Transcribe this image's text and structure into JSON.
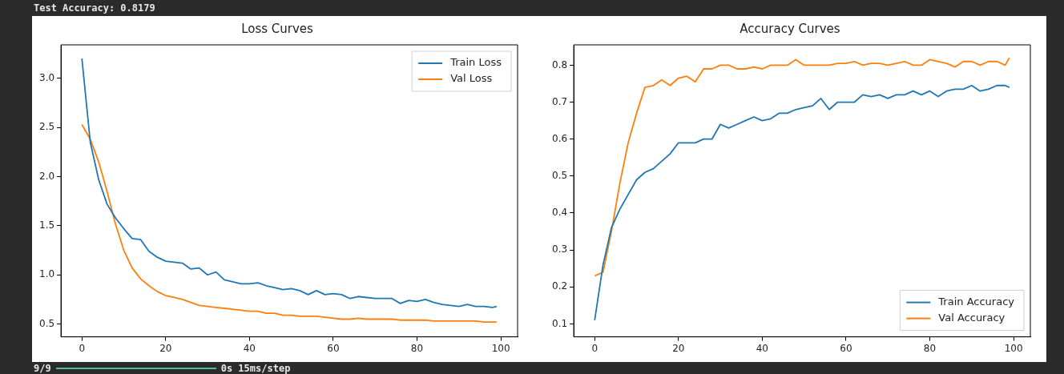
{
  "chart_data": [
    {
      "type": "line",
      "title": "Loss Curves",
      "annotations": [
        "Test Accuracy: 0.8179",
        "9/9",
        "0s 15ms/step"
      ],
      "x": [
        0,
        2,
        4,
        6,
        8,
        10,
        12,
        14,
        16,
        18,
        20,
        22,
        24,
        26,
        28,
        30,
        32,
        34,
        36,
        38,
        40,
        42,
        44,
        46,
        48,
        50,
        52,
        54,
        56,
        58,
        60,
        62,
        64,
        66,
        68,
        70,
        72,
        74,
        76,
        78,
        80,
        82,
        84,
        86,
        88,
        90,
        92,
        94,
        96,
        98,
        99
      ],
      "series": [
        {
          "name": "Train Loss",
          "color": "#1f77b4",
          "values": [
            3.2,
            2.35,
            1.97,
            1.72,
            1.58,
            1.47,
            1.37,
            1.36,
            1.24,
            1.18,
            1.14,
            1.13,
            1.12,
            1.06,
            1.07,
            1.0,
            1.03,
            0.95,
            0.93,
            0.91,
            0.91,
            0.92,
            0.89,
            0.87,
            0.85,
            0.86,
            0.84,
            0.8,
            0.84,
            0.8,
            0.81,
            0.8,
            0.76,
            0.78,
            0.77,
            0.76,
            0.76,
            0.76,
            0.71,
            0.74,
            0.73,
            0.75,
            0.72,
            0.7,
            0.69,
            0.68,
            0.7,
            0.68,
            0.68,
            0.67,
            0.68
          ]
        },
        {
          "name": "Val Loss",
          "color": "#ff7f0e",
          "values": [
            2.53,
            2.38,
            2.15,
            1.85,
            1.52,
            1.25,
            1.07,
            0.96,
            0.89,
            0.83,
            0.79,
            0.77,
            0.75,
            0.72,
            0.69,
            0.68,
            0.67,
            0.66,
            0.65,
            0.64,
            0.63,
            0.63,
            0.61,
            0.61,
            0.59,
            0.59,
            0.58,
            0.58,
            0.58,
            0.57,
            0.56,
            0.55,
            0.55,
            0.56,
            0.55,
            0.55,
            0.55,
            0.55,
            0.54,
            0.54,
            0.54,
            0.54,
            0.53,
            0.53,
            0.53,
            0.53,
            0.53,
            0.53,
            0.52,
            0.52,
            0.52
          ]
        }
      ],
      "xlim": [
        -5,
        104
      ],
      "xticks": [
        0,
        20,
        40,
        60,
        80,
        100
      ],
      "ylim": [
        0.37,
        3.34
      ],
      "yticks": [
        0.5,
        {
          "value": 1,
          "label": "1.0"
        },
        1.5,
        {
          "value": 2,
          "label": "2.0"
        },
        2.5,
        {
          "value": 3,
          "label": "3.0"
        }
      ],
      "legend": "top right"
    },
    {
      "type": "line",
      "title": "Accuracy Curves",
      "x": [
        0,
        2,
        4,
        6,
        8,
        10,
        12,
        14,
        16,
        18,
        20,
        22,
        24,
        26,
        28,
        30,
        32,
        34,
        36,
        38,
        40,
        42,
        44,
        46,
        48,
        50,
        52,
        54,
        56,
        58,
        60,
        62,
        64,
        66,
        68,
        70,
        72,
        74,
        76,
        78,
        80,
        82,
        84,
        86,
        88,
        90,
        92,
        94,
        96,
        98,
        99
      ],
      "series": [
        {
          "name": "Train Accuracy",
          "color": "#1f77b4",
          "values": [
            0.11,
            0.26,
            0.36,
            0.41,
            0.45,
            0.49,
            0.51,
            0.52,
            0.54,
            0.56,
            0.59,
            0.59,
            0.59,
            0.6,
            0.6,
            0.64,
            0.63,
            0.64,
            0.65,
            0.66,
            0.65,
            0.655,
            0.67,
            0.67,
            0.68,
            0.685,
            0.69,
            0.71,
            0.68,
            0.7,
            0.7,
            0.7,
            0.72,
            0.715,
            0.72,
            0.71,
            0.72,
            0.72,
            0.73,
            0.72,
            0.73,
            0.715,
            0.73,
            0.735,
            0.735,
            0.745,
            0.73,
            0.735,
            0.745,
            0.745,
            0.74
          ]
        },
        {
          "name": "Val Accuracy",
          "color": "#ff7f0e",
          "values": [
            0.23,
            0.24,
            0.35,
            0.48,
            0.59,
            0.67,
            0.74,
            0.745,
            0.76,
            0.745,
            0.765,
            0.77,
            0.755,
            0.79,
            0.79,
            0.8,
            0.8,
            0.79,
            0.79,
            0.795,
            0.79,
            0.8,
            0.8,
            0.8,
            0.815,
            0.8,
            0.8,
            0.8,
            0.8,
            0.805,
            0.805,
            0.81,
            0.8,
            0.805,
            0.805,
            0.8,
            0.805,
            0.81,
            0.8,
            0.8,
            0.815,
            0.81,
            0.805,
            0.795,
            0.81,
            0.81,
            0.8,
            0.81,
            0.81,
            0.8,
            0.82
          ]
        }
      ],
      "xlim": [
        -5,
        104
      ],
      "xticks": [
        0,
        20,
        40,
        60,
        80,
        100
      ],
      "ylim": [
        0.065,
        0.855
      ],
      "yticks": [
        0.1,
        0.2,
        0.3,
        0.4,
        0.5,
        0.6,
        0.7,
        0.8
      ],
      "legend": "bottom right"
    }
  ]
}
